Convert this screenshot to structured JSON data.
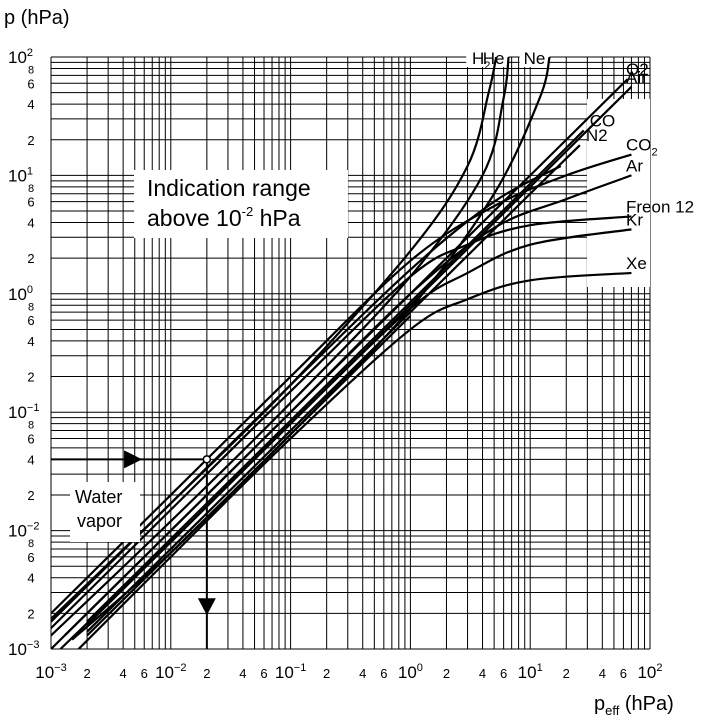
{
  "chart_data": {
    "type": "line",
    "title": "",
    "x_axis": {
      "label": "p",
      "label_sub": "eff",
      "label_unit": " (hPa)",
      "scale": "log",
      "range": [
        0.001,
        100
      ],
      "major_tick_labels": [
        {
          "base": "10",
          "exp": "−3"
        },
        {
          "base": "10",
          "exp": "−2"
        },
        {
          "base": "10",
          "exp": "−1"
        },
        {
          "base": "10",
          "exp": "0"
        },
        {
          "base": "10",
          "exp": "1"
        },
        {
          "base": "10",
          "exp": "2"
        }
      ],
      "minor_tick_labels": [
        "2",
        "4",
        "6"
      ]
    },
    "y_axis": {
      "label": "p (hPa)",
      "scale": "log",
      "range": [
        0.001,
        100
      ],
      "major_tick_labels": [
        {
          "base": "10",
          "exp": "−3"
        },
        {
          "base": "10",
          "exp": "−2"
        },
        {
          "base": "10",
          "exp": "−1"
        },
        {
          "base": "10",
          "exp": "0"
        },
        {
          "base": "10",
          "exp": "1"
        },
        {
          "base": "10",
          "exp": "2"
        }
      ],
      "minor_tick_labels": [
        "2",
        "4",
        "6",
        "8"
      ]
    },
    "grid": true,
    "annotations": {
      "indication_line1": "Indication range",
      "indication_line2_pre": "above 10",
      "indication_line2_exp": "-2",
      "indication_line2_post": " hPa",
      "water_vapor_line1": "Water",
      "water_vapor_line2": "vapor",
      "example_point": {
        "x": 0.02,
        "y": 0.04
      }
    },
    "series": [
      {
        "name": "H",
        "name_sub": "2",
        "label_pos": "top",
        "x": [
          0.001,
          0.01,
          0.1,
          1,
          3,
          4.5,
          5.2
        ],
        "y": [
          0.0018,
          0.017,
          0.17,
          2.3,
          12,
          50,
          100
        ]
      },
      {
        "name": "He",
        "label_pos": "top",
        "x": [
          0.001,
          0.01,
          0.1,
          1,
          4,
          6,
          6.6
        ],
        "y": [
          0.0013,
          0.012,
          0.12,
          1.4,
          10,
          45,
          100
        ]
      },
      {
        "name": "Ne",
        "label_pos": "top",
        "x": [
          0.002,
          0.01,
          0.1,
          1,
          5,
          12,
          14.5
        ],
        "y": [
          0.0013,
          0.0065,
          0.065,
          0.75,
          7,
          45,
          100
        ]
      },
      {
        "name": "Air",
        "label_pos": "right",
        "x": [
          0.002,
          0.01,
          0.1,
          1,
          10,
          70
        ],
        "y": [
          0.0016,
          0.008,
          0.08,
          0.8,
          8,
          56
        ]
      },
      {
        "name": "O2",
        "label_pos": "right",
        "x": [
          0.001,
          0.01,
          0.1,
          1,
          10,
          65
        ],
        "y": [
          0.001,
          0.01,
          0.1,
          1.0,
          10,
          65
        ]
      },
      {
        "name": "CO",
        "label_pos": "right",
        "x": [
          0.002,
          0.01,
          0.1,
          1,
          10,
          28
        ],
        "y": [
          0.0017,
          0.0085,
          0.085,
          0.85,
          8.5,
          24
        ]
      },
      {
        "name": "N2",
        "label_pos": "right",
        "x": [
          0.002,
          0.01,
          0.1,
          1,
          10,
          26
        ],
        "y": [
          0.0014,
          0.007,
          0.07,
          0.7,
          7,
          18
        ]
      },
      {
        "name": "CO",
        "name_sub": "2",
        "label_pos": "right",
        "x": [
          0.001,
          0.01,
          0.1,
          1,
          5,
          20,
          70
        ],
        "y": [
          0.002,
          0.02,
          0.2,
          1.9,
          5.5,
          10,
          15
        ]
      },
      {
        "name": "",
        "label_pos": "none",
        "x": [
          0.001,
          0.01,
          0.1,
          1,
          5,
          18
        ],
        "y": [
          0.0017,
          0.017,
          0.17,
          1.6,
          6,
          12
        ]
      },
      {
        "name": "Ar",
        "label_pos": "right",
        "x": [
          0.0013,
          0.01,
          0.1,
          1,
          5,
          20,
          70
        ],
        "y": [
          0.0013,
          0.01,
          0.1,
          1.0,
          3.6,
          6.3,
          10
        ]
      },
      {
        "name": "Freon 12",
        "label_pos": "right",
        "x": [
          0.001,
          0.01,
          0.1,
          1,
          3,
          10,
          70
        ],
        "y": [
          0.0015,
          0.015,
          0.15,
          1.4,
          2.6,
          3.8,
          4.5
        ]
      },
      {
        "name": "Kr",
        "label_pos": "right",
        "x": [
          0.0012,
          0.01,
          0.1,
          1,
          3,
          10,
          70
        ],
        "y": [
          0.001,
          0.008,
          0.08,
          0.75,
          1.5,
          2.6,
          3.5
        ]
      },
      {
        "name": "Xe",
        "label_pos": "right",
        "x": [
          0.0017,
          0.01,
          0.1,
          1,
          3,
          10,
          70
        ],
        "y": [
          0.001,
          0.006,
          0.06,
          0.5,
          0.9,
          1.3,
          1.5
        ]
      },
      {
        "name": "",
        "label_pos": "none",
        "x": [
          0.0015,
          0.01,
          0.1,
          1
        ],
        "y": [
          0.0012,
          0.0065,
          0.065,
          0.65
        ]
      }
    ]
  }
}
